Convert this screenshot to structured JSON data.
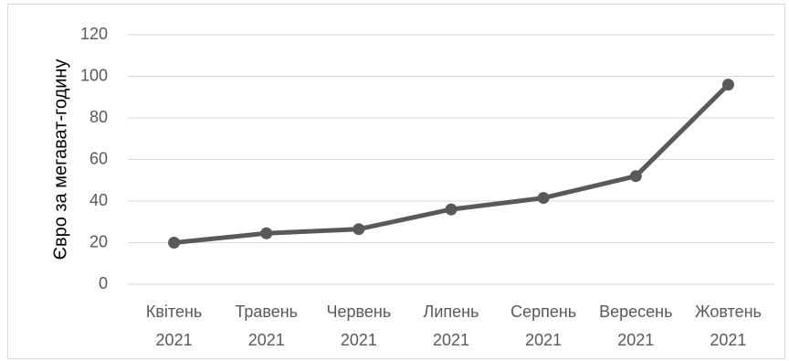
{
  "chart_data": {
    "type": "line",
    "title": "",
    "xlabel": "",
    "ylabel": "Євро за мегават-годину",
    "categories": [
      [
        "Квітень",
        "2021"
      ],
      [
        "Травень",
        "2021"
      ],
      [
        "Червень",
        "2021"
      ],
      [
        "Липень",
        "2021"
      ],
      [
        "Серпень",
        "2021"
      ],
      [
        "Вересень",
        "2021"
      ],
      [
        "Жовтень",
        "2021"
      ]
    ],
    "series": [
      {
        "values": [
          20,
          24.5,
          26.5,
          36,
          41.5,
          52,
          96
        ],
        "color": "#595959"
      }
    ],
    "ylim": [
      0,
      120
    ],
    "yticks": [
      0,
      20,
      40,
      60,
      80,
      100,
      120
    ],
    "grid": true,
    "gridColor": "#d9d9d9",
    "legend": "none"
  }
}
